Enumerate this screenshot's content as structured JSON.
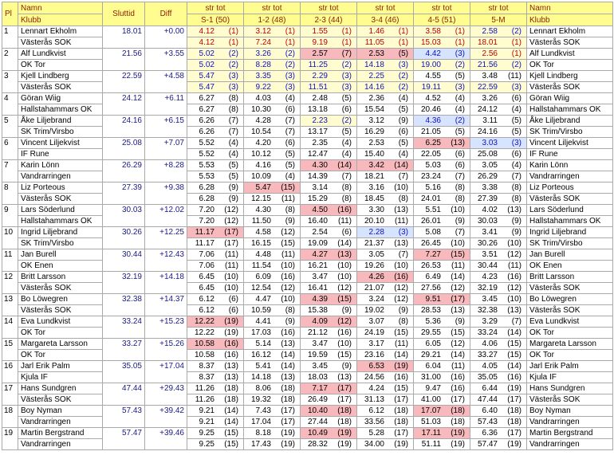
{
  "headers": {
    "pl": "Pl",
    "name1": "Namn",
    "name2": "Klubb",
    "sluttid": "Sluttid",
    "diff": "Diff",
    "legs": [
      {
        "top": "str tot",
        "bottom": "S-1 (50)"
      },
      {
        "top": "str tot",
        "bottom": "1-2 (48)"
      },
      {
        "top": "str tot",
        "bottom": "2-3 (44)"
      },
      {
        "top": "str tot",
        "bottom": "3-4 (46)"
      },
      {
        "top": "str tot",
        "bottom": "4-5 (51)"
      },
      {
        "top": "str tot",
        "bottom": "5-M"
      }
    ],
    "right_name1": "Namn",
    "right_name2": "Klubb"
  },
  "rows": [
    {
      "pl": "1",
      "name": "Lennart Ekholm",
      "club": "Västerås SOK",
      "sluttid": "18.01",
      "diff": "+0.00",
      "s": [
        [
          "4.12",
          "(1)",
          "4.12",
          "(1)",
          "r",
          "r"
        ],
        [
          "3.12",
          "(1)",
          "7.24",
          "(1)",
          "r",
          "r"
        ],
        [
          "1.55",
          "(1)",
          "9.19",
          "(1)",
          "r",
          "r"
        ],
        [
          "1.46",
          "(1)",
          "11.05",
          "(1)",
          "r",
          "r"
        ],
        [
          "3.58",
          "(1)",
          "15.03",
          "(1)",
          "r",
          "r"
        ],
        [
          "2.58",
          "(2)",
          "18.01",
          "(1)",
          "b",
          "r"
        ]
      ]
    },
    {
      "pl": "2",
      "name": "Alf Lundkvist",
      "club": "OK Tor",
      "sluttid": "21.56",
      "diff": "+3.55",
      "s": [
        [
          "5.02",
          "(2)",
          "5.02",
          "(2)",
          "b",
          "b"
        ],
        [
          "3.26",
          "(2)",
          "8.28",
          "(2)",
          "b",
          "b"
        ],
        [
          "2.57",
          "(7)",
          "11.25",
          "(2)",
          "pk",
          "b"
        ],
        [
          "2.53",
          "(5)",
          "14.18",
          "(3)",
          "pk",
          "b"
        ],
        [
          "4.42",
          "(3)",
          "19.00",
          "(2)",
          "bl",
          "b"
        ],
        [
          "2.56",
          "(1)",
          "21.56",
          "(2)",
          "r",
          "b"
        ]
      ]
    },
    {
      "pl": "3",
      "name": "Kjell Lindberg",
      "club": "Västerås SOK",
      "sluttid": "22.59",
      "diff": "+4.58",
      "s": [
        [
          "5.47",
          "(3)",
          "5.47",
          "(3)",
          "b",
          "b"
        ],
        [
          "3.35",
          "(3)",
          "9.22",
          "(3)",
          "b",
          "b"
        ],
        [
          "2.29",
          "(3)",
          "11.51",
          "(3)",
          "b",
          "b"
        ],
        [
          "2.25",
          "(2)",
          "14.16",
          "(2)",
          "b",
          "b"
        ],
        [
          "4.55",
          "(5)",
          "19.11",
          "(3)",
          "k",
          "b"
        ],
        [
          "3.48",
          "(11)",
          "22.59",
          "(3)",
          "k",
          "b"
        ]
      ]
    },
    {
      "pl": "4",
      "name": "Göran Wiig",
      "club": "Hallstahammars OK",
      "sluttid": "24.12",
      "diff": "+6.11",
      "s": [
        [
          "6.27",
          "(8)",
          "6.27",
          "(8)",
          "k",
          "k"
        ],
        [
          "4.03",
          "(4)",
          "10.30",
          "(6)",
          "k",
          "k"
        ],
        [
          "2.48",
          "(5)",
          "13.18",
          "(6)",
          "k",
          "k"
        ],
        [
          "2.36",
          "(4)",
          "15.54",
          "(5)",
          "k",
          "k"
        ],
        [
          "4.52",
          "(4)",
          "20.46",
          "(4)",
          "k",
          "k"
        ],
        [
          "3.26",
          "(6)",
          "24.12",
          "(4)",
          "k",
          "k"
        ]
      ]
    },
    {
      "pl": "5",
      "name": "Åke Liljebrand",
      "club": "SK Trim/Virsbo",
      "sluttid": "24.16",
      "diff": "+6.15",
      "s": [
        [
          "6.26",
          "(7)",
          "6.26",
          "(7)",
          "k",
          "k"
        ],
        [
          "4.28",
          "(7)",
          "10.54",
          "(7)",
          "k",
          "k"
        ],
        [
          "2.23",
          "(2)",
          "13.17",
          "(5)",
          "b",
          "k"
        ],
        [
          "3.12",
          "(9)",
          "16.29",
          "(6)",
          "k",
          "k"
        ],
        [
          "4.36",
          "(2)",
          "21.05",
          "(5)",
          "bl",
          "k"
        ],
        [
          "3.11",
          "(5)",
          "24.16",
          "(5)",
          "k",
          "k"
        ]
      ]
    },
    {
      "pl": "6",
      "name": "Vincent Liljekvist",
      "club": "IF Rune",
      "sluttid": "25.08",
      "diff": "+7.07",
      "s": [
        [
          "5.52",
          "(4)",
          "5.52",
          "(4)",
          "k",
          "k"
        ],
        [
          "4.20",
          "(6)",
          "10.12",
          "(5)",
          "k",
          "k"
        ],
        [
          "2.35",
          "(4)",
          "12.47",
          "(4)",
          "k",
          "k"
        ],
        [
          "2.53",
          "(5)",
          "15.40",
          "(4)",
          "k",
          "k"
        ],
        [
          "6.25",
          "(13)",
          "22.05",
          "(6)",
          "pk",
          "k"
        ],
        [
          "3.03",
          "(3)",
          "25.08",
          "(6)",
          "bl",
          "k"
        ]
      ]
    },
    {
      "pl": "7",
      "name": "Karin Lönn",
      "club": "Vandrarringen",
      "sluttid": "26.29",
      "diff": "+8.28",
      "s": [
        [
          "5.53",
          "(5)",
          "5.53",
          "(5)",
          "k",
          "k"
        ],
        [
          "4.16",
          "(5)",
          "10.09",
          "(4)",
          "k",
          "k"
        ],
        [
          "4.30",
          "(14)",
          "14.39",
          "(7)",
          "pk",
          "k"
        ],
        [
          "3.42",
          "(14)",
          "18.21",
          "(7)",
          "pk",
          "k"
        ],
        [
          "5.03",
          "(6)",
          "23.24",
          "(7)",
          "k",
          "k"
        ],
        [
          "3.05",
          "(4)",
          "26.29",
          "(7)",
          "k",
          "k"
        ]
      ]
    },
    {
      "pl": "8",
      "name": "Liz Porteous",
      "club": "Västerås SOK",
      "sluttid": "27.39",
      "diff": "+9.38",
      "s": [
        [
          "6.28",
          "(9)",
          "6.28",
          "(9)",
          "k",
          "k"
        ],
        [
          "5.47",
          "(15)",
          "12.15",
          "(11)",
          "pk",
          "k"
        ],
        [
          "3.14",
          "(8)",
          "15.29",
          "(8)",
          "k",
          "k"
        ],
        [
          "3.16",
          "(10)",
          "18.45",
          "(8)",
          "k",
          "k"
        ],
        [
          "5.16",
          "(8)",
          "24.01",
          "(8)",
          "k",
          "k"
        ],
        [
          "3.38",
          "(8)",
          "27.39",
          "(8)",
          "k",
          "k"
        ]
      ]
    },
    {
      "pl": "9",
      "name": "Lars Söderlund",
      "club": "Hallstahammars OK",
      "sluttid": "30.03",
      "diff": "+12.02",
      "s": [
        [
          "7.20",
          "(12)",
          "7.20",
          "(12)",
          "k",
          "k"
        ],
        [
          "4.30",
          "(8)",
          "11.50",
          "(9)",
          "k",
          "k"
        ],
        [
          "4.50",
          "(16)",
          "16.40",
          "(11)",
          "pk",
          "k"
        ],
        [
          "3.30",
          "(13)",
          "20.10",
          "(11)",
          "k",
          "k"
        ],
        [
          "5.51",
          "(10)",
          "26.01",
          "(9)",
          "k",
          "k"
        ],
        [
          "4.02",
          "(13)",
          "30.03",
          "(9)",
          "k",
          "k"
        ]
      ]
    },
    {
      "pl": "10",
      "name": "Ingrid Liljebrand",
      "club": "SK Trim/Virsbo",
      "sluttid": "30.26",
      "diff": "+12.25",
      "s": [
        [
          "11.17",
          "(17)",
          "11.17",
          "(17)",
          "pk",
          "k"
        ],
        [
          "4.58",
          "(12)",
          "16.15",
          "(15)",
          "k",
          "k"
        ],
        [
          "2.54",
          "(6)",
          "19.09",
          "(14)",
          "k",
          "k"
        ],
        [
          "2.28",
          "(3)",
          "21.37",
          "(13)",
          "bl",
          "k"
        ],
        [
          "5.08",
          "(7)",
          "26.45",
          "(10)",
          "k",
          "k"
        ],
        [
          "3.41",
          "(9)",
          "30.26",
          "(10)",
          "k",
          "k"
        ]
      ]
    },
    {
      "pl": "11",
      "name": "Jan Burell",
      "club": "OK Enen",
      "sluttid": "30.44",
      "diff": "+12.43",
      "s": [
        [
          "7.06",
          "(11)",
          "7.06",
          "(11)",
          "k",
          "k"
        ],
        [
          "4.48",
          "(11)",
          "11.54",
          "(10)",
          "k",
          "k"
        ],
        [
          "4.27",
          "(13)",
          "16.21",
          "(10)",
          "pk",
          "k"
        ],
        [
          "3.05",
          "(7)",
          "19.26",
          "(10)",
          "k",
          "k"
        ],
        [
          "7.27",
          "(15)",
          "26.53",
          "(11)",
          "pk",
          "k"
        ],
        [
          "3.51",
          "(12)",
          "30.44",
          "(11)",
          "k",
          "k"
        ]
      ]
    },
    {
      "pl": "12",
      "name": "Britt Larsson",
      "club": "Västerås SOK",
      "sluttid": "32.19",
      "diff": "+14.18",
      "s": [
        [
          "6.45",
          "(10)",
          "6.45",
          "(10)",
          "k",
          "k"
        ],
        [
          "6.09",
          "(16)",
          "12.54",
          "(12)",
          "k",
          "k"
        ],
        [
          "3.47",
          "(10)",
          "16.41",
          "(12)",
          "k",
          "k"
        ],
        [
          "4.26",
          "(16)",
          "21.07",
          "(12)",
          "pk",
          "k"
        ],
        [
          "6.49",
          "(14)",
          "27.56",
          "(12)",
          "k",
          "k"
        ],
        [
          "4.23",
          "(16)",
          "32.19",
          "(12)",
          "k",
          "k"
        ]
      ]
    },
    {
      "pl": "13",
      "name": "Bo Löwegren",
      "club": "Västerås SOK",
      "sluttid": "32.38",
      "diff": "+14.37",
      "s": [
        [
          "6.12",
          "(6)",
          "6.12",
          "(6)",
          "k",
          "k"
        ],
        [
          "4.47",
          "(10)",
          "10.59",
          "(8)",
          "k",
          "k"
        ],
        [
          "4.39",
          "(15)",
          "15.38",
          "(9)",
          "pk",
          "k"
        ],
        [
          "3.24",
          "(12)",
          "19.02",
          "(9)",
          "k",
          "k"
        ],
        [
          "9.51",
          "(17)",
          "28.53",
          "(13)",
          "pk",
          "k"
        ],
        [
          "3.45",
          "(10)",
          "32.38",
          "(13)",
          "k",
          "k"
        ]
      ]
    },
    {
      "pl": "14",
      "name": "Eva Lundkvist",
      "club": "OK Tor",
      "sluttid": "33.24",
      "diff": "+15.23",
      "s": [
        [
          "12.22",
          "(19)",
          "12.22",
          "(19)",
          "pk",
          "k"
        ],
        [
          "4.41",
          "(9)",
          "17.03",
          "(16)",
          "k",
          "k"
        ],
        [
          "4.09",
          "(12)",
          "21.12",
          "(16)",
          "pk",
          "k"
        ],
        [
          "3.07",
          "(8)",
          "24.19",
          "(15)",
          "k",
          "k"
        ],
        [
          "5.36",
          "(9)",
          "29.55",
          "(15)",
          "k",
          "k"
        ],
        [
          "3.29",
          "(7)",
          "33.24",
          "(14)",
          "k",
          "k"
        ]
      ]
    },
    {
      "pl": "15",
      "name": "Margareta Larsson",
      "club": "OK Tor",
      "sluttid": "33.27",
      "diff": "+15.26",
      "s": [
        [
          "10.58",
          "(16)",
          "10.58",
          "(16)",
          "pk",
          "k"
        ],
        [
          "5.14",
          "(13)",
          "16.12",
          "(14)",
          "k",
          "k"
        ],
        [
          "3.47",
          "(10)",
          "19.59",
          "(15)",
          "k",
          "k"
        ],
        [
          "3.17",
          "(11)",
          "23.16",
          "(14)",
          "k",
          "k"
        ],
        [
          "6.05",
          "(12)",
          "29.21",
          "(14)",
          "k",
          "k"
        ],
        [
          "4.06",
          "(15)",
          "33.27",
          "(15)",
          "k",
          "k"
        ]
      ]
    },
    {
      "pl": "16",
      "name": "Jarl Erik Palm",
      "club": "Kjula IF",
      "sluttid": "35.05",
      "diff": "+17.04",
      "s": [
        [
          "8.37",
          "(13)",
          "8.37",
          "(13)",
          "k",
          "k"
        ],
        [
          "5.41",
          "(14)",
          "14.18",
          "(13)",
          "k",
          "k"
        ],
        [
          "3.45",
          "(9)",
          "18.03",
          "(13)",
          "k",
          "k"
        ],
        [
          "6.53",
          "(19)",
          "24.56",
          "(16)",
          "pk",
          "k"
        ],
        [
          "6.04",
          "(11)",
          "31.00",
          "(16)",
          "k",
          "k"
        ],
        [
          "4.05",
          "(14)",
          "35.05",
          "(16)",
          "k",
          "k"
        ]
      ]
    },
    {
      "pl": "17",
      "name": "Hans Sundgren",
      "club": "Västerås SOK",
      "sluttid": "47.44",
      "diff": "+29.43",
      "s": [
        [
          "11.26",
          "(18)",
          "11.26",
          "(18)",
          "k",
          "k"
        ],
        [
          "8.06",
          "(18)",
          "19.32",
          "(18)",
          "k",
          "k"
        ],
        [
          "7.17",
          "(17)",
          "26.49",
          "(17)",
          "pk",
          "k"
        ],
        [
          "4.24",
          "(15)",
          "31.13",
          "(17)",
          "k",
          "k"
        ],
        [
          "9.47",
          "(16)",
          "41.00",
          "(17)",
          "k",
          "k"
        ],
        [
          "6.44",
          "(19)",
          "47.44",
          "(17)",
          "k",
          "k"
        ]
      ]
    },
    {
      "pl": "18",
      "name": "Boy Nyman",
      "club": "Vandrarringen",
      "sluttid": "57.43",
      "diff": "+39.42",
      "s": [
        [
          "9.21",
          "(14)",
          "9.21",
          "(14)",
          "k",
          "k"
        ],
        [
          "7.43",
          "(17)",
          "17.04",
          "(17)",
          "k",
          "k"
        ],
        [
          "10.40",
          "(18)",
          "27.44",
          "(18)",
          "pk",
          "k"
        ],
        [
          "6.12",
          "(18)",
          "33.56",
          "(18)",
          "k",
          "k"
        ],
        [
          "17.07",
          "(18)",
          "51.03",
          "(18)",
          "pk",
          "k"
        ],
        [
          "6.40",
          "(18)",
          "57.43",
          "(18)",
          "k",
          "k"
        ]
      ]
    },
    {
      "pl": "19",
      "name": "Martin Bergstrand",
      "club": "Vandrarringen",
      "sluttid": "57.47",
      "diff": "+39.46",
      "s": [
        [
          "9.25",
          "(15)",
          "9.25",
          "(15)",
          "k",
          "k"
        ],
        [
          "8.18",
          "(19)",
          "17.43",
          "(19)",
          "k",
          "k"
        ],
        [
          "10.49",
          "(19)",
          "28.32",
          "(19)",
          "pk",
          "k"
        ],
        [
          "5.28",
          "(17)",
          "34.00",
          "(19)",
          "k",
          "k"
        ],
        [
          "17.11",
          "(19)",
          "51.11",
          "(19)",
          "pk",
          "k"
        ],
        [
          "6.36",
          "(17)",
          "57.47",
          "(19)",
          "k",
          "k"
        ]
      ]
    }
  ]
}
